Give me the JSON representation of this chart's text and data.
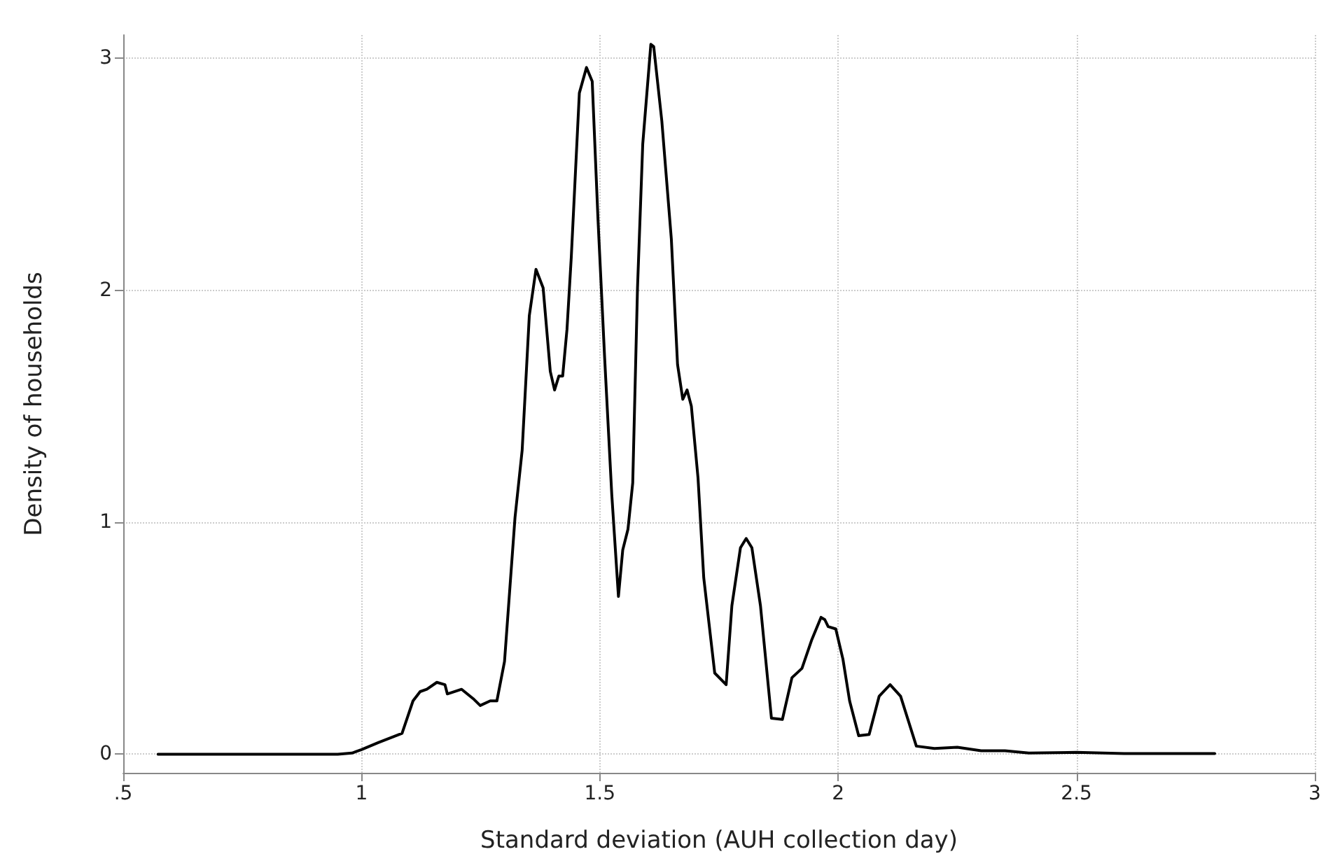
{
  "chart_data": {
    "type": "line",
    "xlabel": "Standard deviation (AUH collection day)",
    "ylabel": "Density of households",
    "xlim": [
      0.5,
      3
    ],
    "xticks": [
      {
        "value": 0.5,
        "label": ".5"
      },
      1,
      1.5,
      2,
      2.5,
      3
    ],
    "ylim": [
      -0.08,
      3.1
    ],
    "yticks": [
      0,
      1,
      2,
      3
    ],
    "grid": true,
    "marker": "none",
    "line_style": "solid",
    "series": [
      {
        "color": "#000000",
        "x": [
          0.573,
          0.7,
          0.8,
          0.9,
          0.95,
          0.98,
          1.0,
          1.035,
          1.085,
          1.108,
          1.123,
          1.137,
          1.158,
          1.175,
          1.18,
          1.21,
          1.234,
          1.249,
          1.27,
          1.284,
          1.3,
          1.322,
          1.337,
          1.352,
          1.366,
          1.381,
          1.396,
          1.405,
          1.414,
          1.422,
          1.431,
          1.44,
          1.457,
          1.472,
          1.484,
          1.496,
          1.51,
          1.525,
          1.539,
          1.548,
          1.559,
          1.569,
          1.579,
          1.59,
          1.607,
          1.613,
          1.63,
          1.65,
          1.663,
          1.674,
          1.683,
          1.692,
          1.706,
          1.718,
          1.741,
          1.765,
          1.777,
          1.795,
          1.807,
          1.819,
          1.837,
          1.86,
          1.883,
          1.903,
          1.924,
          1.944,
          1.964,
          1.972,
          1.979,
          1.995,
          2.01,
          2.024,
          2.043,
          2.065,
          2.086,
          2.109,
          2.131,
          2.164,
          2.202,
          2.25,
          2.3,
          2.35,
          2.4,
          2.5,
          2.6,
          2.7,
          2.79
        ],
        "values": [
          0,
          0,
          0,
          0,
          0,
          0.005,
          0.02,
          0.05,
          0.09,
          0.23,
          0.27,
          0.28,
          0.31,
          0.3,
          0.26,
          0.28,
          0.24,
          0.21,
          0.23,
          0.23,
          0.4,
          1.02,
          1.31,
          1.89,
          2.09,
          2.01,
          1.65,
          1.57,
          1.63,
          1.63,
          1.83,
          2.14,
          2.85,
          2.96,
          2.9,
          2.31,
          1.71,
          1.12,
          0.68,
          0.88,
          0.97,
          1.17,
          2.01,
          2.63,
          3.06,
          3.05,
          2.73,
          2.22,
          1.68,
          1.53,
          1.57,
          1.5,
          1.19,
          0.76,
          0.35,
          0.3,
          0.64,
          0.89,
          0.93,
          0.89,
          0.64,
          0.155,
          0.15,
          0.33,
          0.37,
          0.49,
          0.59,
          0.58,
          0.55,
          0.54,
          0.41,
          0.23,
          0.08,
          0.085,
          0.25,
          0.3,
          0.25,
          0.035,
          0.025,
          0.03,
          0.015,
          0.015,
          0.005,
          0.008,
          0.003,
          0.003,
          0.003
        ]
      }
    ]
  }
}
